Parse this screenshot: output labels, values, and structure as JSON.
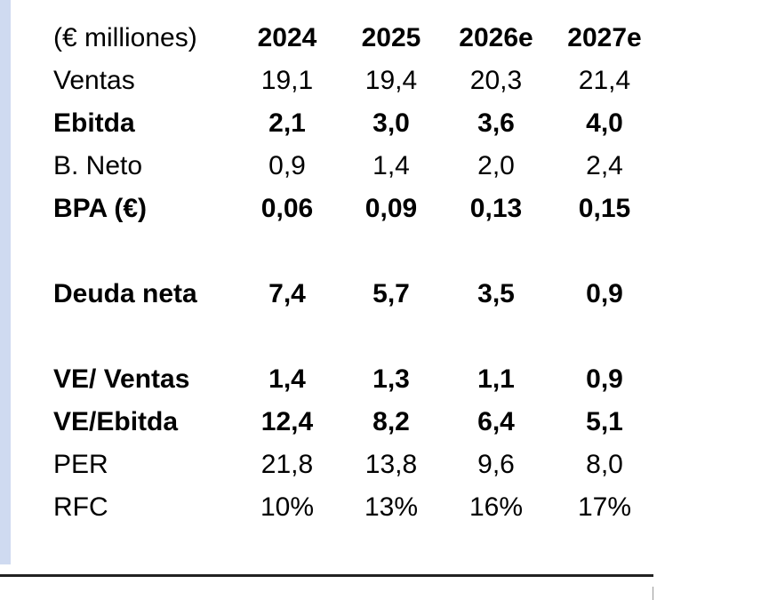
{
  "table": {
    "header": [
      "(€ milliones)",
      "2024",
      "2025",
      "2026e",
      "2027e"
    ],
    "sections": [
      [
        {
          "label": "Ventas",
          "values": [
            "19,1",
            "19,4",
            "20,3",
            "21,4"
          ],
          "bold": false
        },
        {
          "label": "Ebitda",
          "values": [
            "2,1",
            "3,0",
            "3,6",
            "4,0"
          ],
          "bold": true
        },
        {
          "label": "B. Neto",
          "values": [
            "0,9",
            "1,4",
            "2,0",
            "2,4"
          ],
          "bold": false
        },
        {
          "label": "BPA (€)",
          "values": [
            "0,06",
            "0,09",
            "0,13",
            "0,15"
          ],
          "bold": true
        }
      ],
      [
        {
          "label": "Deuda neta",
          "values": [
            "7,4",
            "5,7",
            "3,5",
            "0,9"
          ],
          "bold": true
        }
      ],
      [
        {
          "label": "VE/ Ventas",
          "values": [
            "1,4",
            "1,3",
            "1,1",
            "0,9"
          ],
          "bold": true
        },
        {
          "label": "VE/Ebitda",
          "values": [
            "12,4",
            "8,2",
            "6,4",
            "5,1"
          ],
          "bold": true
        },
        {
          "label": "PER",
          "values": [
            "21,8",
            "13,8",
            "9,6",
            "8,0"
          ],
          "bold": false
        },
        {
          "label": "RFC",
          "values": [
            "10%",
            "13%",
            "16%",
            "17%"
          ],
          "bold": false
        }
      ]
    ]
  }
}
